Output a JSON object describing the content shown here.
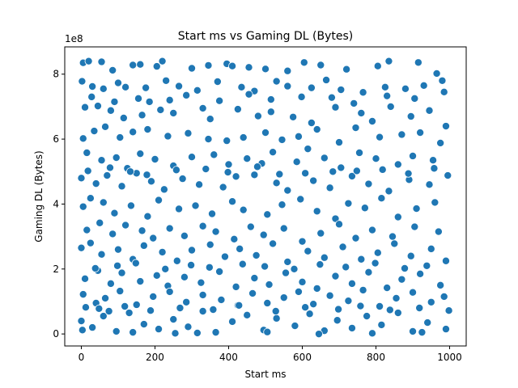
{
  "chart_data": {
    "type": "scatter",
    "title": "Start ms vs Gaming DL (Bytes)",
    "xlabel": "Start ms",
    "ylabel": "Gaming DL (Bytes)",
    "y_offset_label": "1e8",
    "xlim": [
      -45,
      1045
    ],
    "ylim": [
      -0.37,
      8.84
    ],
    "y_scale_multiplier": 100000000,
    "x_ticks": [
      0,
      200,
      400,
      600,
      800,
      1000
    ],
    "y_ticks": [
      0,
      2,
      4,
      6,
      8
    ],
    "x_tick_labels": [
      "0",
      "200",
      "400",
      "600",
      "800",
      "1000"
    ],
    "y_tick_labels": [
      "0",
      "2",
      "4",
      "6",
      "8"
    ],
    "grid": false,
    "marker_color": "#1f77b4",
    "marker_edge_color": "#ffffff",
    "points": [
      [
        5,
        8.35
      ],
      [
        20,
        8.4
      ],
      [
        55,
        8.38
      ],
      [
        85,
        8.12
      ],
      [
        140,
        8.28
      ],
      [
        160,
        8.3
      ],
      [
        205,
        8.24
      ],
      [
        220,
        8.4
      ],
      [
        300,
        8.18
      ],
      [
        345,
        8.27
      ],
      [
        395,
        8.32
      ],
      [
        410,
        8.25
      ],
      [
        455,
        8.21
      ],
      [
        500,
        8.16
      ],
      [
        560,
        8.1
      ],
      [
        605,
        8.36
      ],
      [
        650,
        8.28
      ],
      [
        720,
        8.15
      ],
      [
        805,
        8.25
      ],
      [
        835,
        8.4
      ],
      [
        915,
        8.36
      ],
      [
        965,
        8.02
      ],
      [
        2,
        7.78
      ],
      [
        30,
        7.62
      ],
      [
        60,
        7.55
      ],
      [
        100,
        7.73
      ],
      [
        120,
        7.6
      ],
      [
        175,
        7.58
      ],
      [
        230,
        7.8
      ],
      [
        265,
        7.63
      ],
      [
        315,
        7.5
      ],
      [
        370,
        7.77
      ],
      [
        435,
        7.6
      ],
      [
        470,
        7.48
      ],
      [
        530,
        7.78
      ],
      [
        560,
        7.63
      ],
      [
        625,
        7.58
      ],
      [
        665,
        7.82
      ],
      [
        705,
        7.52
      ],
      [
        765,
        7.44
      ],
      [
        825,
        7.6
      ],
      [
        880,
        7.55
      ],
      [
        930,
        7.65
      ],
      [
        980,
        7.8
      ],
      [
        10,
        6.98
      ],
      [
        45,
        7.02
      ],
      [
        80,
        6.88
      ],
      [
        115,
        6.65
      ],
      [
        165,
        6.74
      ],
      [
        185,
        7.15
      ],
      [
        215,
        6.9
      ],
      [
        250,
        6.8
      ],
      [
        330,
        6.95
      ],
      [
        350,
        6.62
      ],
      [
        425,
        6.92
      ],
      [
        480,
        6.71
      ],
      [
        515,
        6.84
      ],
      [
        575,
        6.68
      ],
      [
        625,
        6.5
      ],
      [
        690,
        6.98
      ],
      [
        760,
        6.8
      ],
      [
        790,
        6.55
      ],
      [
        840,
        7.0
      ],
      [
        895,
        6.7
      ],
      [
        945,
        6.88
      ],
      [
        990,
        6.4
      ],
      [
        5,
        6.02
      ],
      [
        35,
        6.25
      ],
      [
        65,
        6.38
      ],
      [
        105,
        6.05
      ],
      [
        140,
        6.22
      ],
      [
        180,
        6.3
      ],
      [
        235,
        6.09
      ],
      [
        290,
        6.18
      ],
      [
        345,
        6.0
      ],
      [
        395,
        5.95
      ],
      [
        440,
        6.05
      ],
      [
        500,
        6.2
      ],
      [
        545,
        5.98
      ],
      [
        590,
        6.08
      ],
      [
        640,
        6.3
      ],
      [
        700,
        5.9
      ],
      [
        745,
        6.35
      ],
      [
        810,
        6.06
      ],
      [
        870,
        6.14
      ],
      [
        920,
        6.2
      ],
      [
        975,
        5.88
      ],
      [
        15,
        5.58
      ],
      [
        55,
        5.35
      ],
      [
        95,
        5.43
      ],
      [
        125,
        5.1
      ],
      [
        160,
        5.55
      ],
      [
        200,
        5.38
      ],
      [
        250,
        5.18
      ],
      [
        300,
        5.45
      ],
      [
        360,
        5.52
      ],
      [
        400,
        5.22
      ],
      [
        450,
        5.4
      ],
      [
        490,
        5.25
      ],
      [
        520,
        5.6
      ],
      [
        585,
        5.3
      ],
      [
        615,
        5.7
      ],
      [
        660,
        5.42
      ],
      [
        705,
        5.12
      ],
      [
        755,
        5.58
      ],
      [
        800,
        5.4
      ],
      [
        860,
        5.22
      ],
      [
        900,
        5.48
      ],
      [
        955,
        5.35
      ],
      [
        0,
        4.8
      ],
      [
        40,
        4.63
      ],
      [
        70,
        4.88
      ],
      [
        110,
        4.55
      ],
      [
        150,
        4.95
      ],
      [
        190,
        4.7
      ],
      [
        225,
        4.45
      ],
      [
        275,
        4.78
      ],
      [
        320,
        4.6
      ],
      [
        385,
        4.52
      ],
      [
        420,
        4.85
      ],
      [
        470,
        4.9
      ],
      [
        530,
        4.65
      ],
      [
        560,
        4.42
      ],
      [
        630,
        4.72
      ],
      [
        675,
        4.5
      ],
      [
        735,
        4.86
      ],
      [
        780,
        4.62
      ],
      [
        835,
        4.4
      ],
      [
        890,
        4.75
      ],
      [
        945,
        4.6
      ],
      [
        995,
        4.88
      ],
      [
        5,
        3.92
      ],
      [
        25,
        4.18
      ],
      [
        60,
        4.05
      ],
      [
        90,
        3.72
      ],
      [
        135,
        3.95
      ],
      [
        180,
        3.62
      ],
      [
        210,
        4.12
      ],
      [
        265,
        3.85
      ],
      [
        310,
        3.95
      ],
      [
        355,
        3.7
      ],
      [
        410,
        4.08
      ],
      [
        440,
        3.82
      ],
      [
        505,
        3.68
      ],
      [
        545,
        3.98
      ],
      [
        595,
        4.15
      ],
      [
        640,
        3.78
      ],
      [
        690,
        3.55
      ],
      [
        725,
        4.02
      ],
      [
        770,
        3.88
      ],
      [
        815,
        4.18
      ],
      [
        860,
        3.6
      ],
      [
        910,
        3.86
      ],
      [
        960,
        4.05
      ],
      [
        15,
        3.2
      ],
      [
        50,
        3.42
      ],
      [
        85,
        3.08
      ],
      [
        120,
        3.35
      ],
      [
        165,
        3.18
      ],
      [
        195,
        2.95
      ],
      [
        240,
        3.25
      ],
      [
        280,
        3.02
      ],
      [
        330,
        3.32
      ],
      [
        365,
        3.15
      ],
      [
        415,
        2.92
      ],
      [
        460,
        3.3
      ],
      [
        495,
        3.05
      ],
      [
        550,
        3.25
      ],
      [
        600,
        2.85
      ],
      [
        650,
        3.1
      ],
      [
        700,
        3.38
      ],
      [
        745,
        2.95
      ],
      [
        790,
        3.2
      ],
      [
        845,
        3.0
      ],
      [
        905,
        3.3
      ],
      [
        970,
        3.15
      ],
      [
        0,
        2.65
      ],
      [
        25,
        2.8
      ],
      [
        55,
        2.45
      ],
      [
        100,
        2.6
      ],
      [
        140,
        2.3
      ],
      [
        170,
        2.72
      ],
      [
        220,
        2.52
      ],
      [
        260,
        2.25
      ],
      [
        300,
        2.58
      ],
      [
        350,
        2.75
      ],
      [
        390,
        2.38
      ],
      [
        430,
        2.62
      ],
      [
        475,
        2.42
      ],
      [
        520,
        2.78
      ],
      [
        560,
        2.22
      ],
      [
        615,
        2.55
      ],
      [
        660,
        2.35
      ],
      [
        710,
        2.68
      ],
      [
        760,
        2.3
      ],
      [
        805,
        2.5
      ],
      [
        850,
        2.78
      ],
      [
        895,
        2.4
      ],
      [
        950,
        2.62
      ],
      [
        990,
        2.25
      ],
      [
        10,
        1.7
      ],
      [
        45,
        1.95
      ],
      [
        80,
        1.55
      ],
      [
        110,
        1.88
      ],
      [
        160,
        1.62
      ],
      [
        205,
        1.8
      ],
      [
        235,
        1.48
      ],
      [
        280,
        1.75
      ],
      [
        325,
        1.58
      ],
      [
        375,
        1.92
      ],
      [
        420,
        1.45
      ],
      [
        470,
        1.72
      ],
      [
        510,
        1.52
      ],
      [
        555,
        1.88
      ],
      [
        600,
        1.6
      ],
      [
        640,
        1.4
      ],
      [
        690,
        1.78
      ],
      [
        735,
        1.55
      ],
      [
        780,
        1.9
      ],
      [
        830,
        1.42
      ],
      [
        870,
        1.68
      ],
      [
        920,
        1.85
      ],
      [
        975,
        1.5
      ],
      [
        5,
        1.22
      ],
      [
        40,
        0.95
      ],
      [
        65,
        1.1
      ],
      [
        105,
        1.32
      ],
      [
        150,
        0.9
      ],
      [
        195,
        1.15
      ],
      [
        240,
        1.3
      ],
      [
        285,
        0.98
      ],
      [
        330,
        1.2
      ],
      [
        380,
        1.05
      ],
      [
        425,
        0.88
      ],
      [
        465,
        1.25
      ],
      [
        505,
        0.95
      ],
      [
        550,
        1.12
      ],
      [
        590,
        1.3
      ],
      [
        630,
        0.92
      ],
      [
        675,
        1.18
      ],
      [
        725,
        1.02
      ],
      [
        765,
        1.35
      ],
      [
        810,
        0.85
      ],
      [
        855,
        1.1
      ],
      [
        900,
        1.28
      ],
      [
        950,
        0.98
      ],
      [
        985,
        1.15
      ],
      [
        0,
        0.4
      ],
      [
        30,
        0.2
      ],
      [
        60,
        0.55
      ],
      [
        95,
        0.08
      ],
      [
        130,
        0.65
      ],
      [
        170,
        0.3
      ],
      [
        210,
        0.15
      ],
      [
        250,
        0.45
      ],
      [
        290,
        0.22
      ],
      [
        330,
        0.7
      ],
      [
        365,
        0.05
      ],
      [
        410,
        0.38
      ],
      [
        450,
        0.58
      ],
      [
        495,
        0.12
      ],
      [
        530,
        0.48
      ],
      [
        580,
        0.25
      ],
      [
        620,
        0.62
      ],
      [
        660,
        0.1
      ],
      [
        695,
        0.42
      ],
      [
        735,
        0.18
      ],
      [
        775,
        0.55
      ],
      [
        815,
        0.28
      ],
      [
        860,
        0.65
      ],
      [
        900,
        0.08
      ],
      [
        940,
        0.35
      ],
      [
        990,
        0.15
      ],
      [
        3,
        0.12
      ],
      [
        12,
        0.82
      ],
      [
        75,
        0.7
      ],
      [
        140,
        0.05
      ],
      [
        255,
        0.02
      ],
      [
        315,
        0.03
      ],
      [
        505,
        0.06
      ],
      [
        645,
        0.0
      ],
      [
        790,
        0.02
      ],
      [
        925,
        0.05
      ],
      [
        28,
        7.3
      ],
      [
        90,
        7.15
      ],
      [
        155,
        7.25
      ],
      [
        240,
        7.2
      ],
      [
        285,
        7.35
      ],
      [
        375,
        7.18
      ],
      [
        455,
        7.38
      ],
      [
        515,
        7.22
      ],
      [
        598,
        7.3
      ],
      [
        680,
        7.28
      ],
      [
        740,
        7.1
      ],
      [
        830,
        7.33
      ],
      [
        905,
        7.25
      ],
      [
        985,
        7.45
      ],
      [
        18,
        5.02
      ],
      [
        78,
        5.12
      ],
      [
        133,
        5.0
      ],
      [
        178,
        4.9
      ],
      [
        258,
        5.05
      ],
      [
        338,
        5.08
      ],
      [
        398,
        4.98
      ],
      [
        478,
        5.15
      ],
      [
        538,
        4.92
      ],
      [
        608,
        4.95
      ],
      [
        683,
        5.0
      ],
      [
        748,
        5.02
      ],
      [
        818,
        5.06
      ],
      [
        888,
        4.94
      ],
      [
        958,
        5.1
      ],
      [
        38,
        2.02
      ],
      [
        98,
        2.1
      ],
      [
        148,
        2.18
      ],
      [
        228,
        2.0
      ],
      [
        298,
        2.12
      ],
      [
        348,
        2.05
      ],
      [
        438,
        2.15
      ],
      [
        498,
        2.08
      ],
      [
        578,
        2.0
      ],
      [
        648,
        2.14
      ],
      [
        718,
        2.06
      ],
      [
        798,
        2.18
      ],
      [
        878,
        2.02
      ],
      [
        938,
        2.1
      ],
      [
        48,
        0.78
      ],
      [
        118,
        0.85
      ],
      [
        188,
        0.72
      ],
      [
        268,
        0.8
      ],
      [
        358,
        0.75
      ],
      [
        428,
        0.88
      ],
      [
        528,
        0.7
      ],
      [
        608,
        0.82
      ],
      [
        698,
        0.76
      ],
      [
        758,
        0.86
      ],
      [
        838,
        0.74
      ],
      [
        918,
        0.8
      ],
      [
        998,
        0.72
      ]
    ]
  }
}
